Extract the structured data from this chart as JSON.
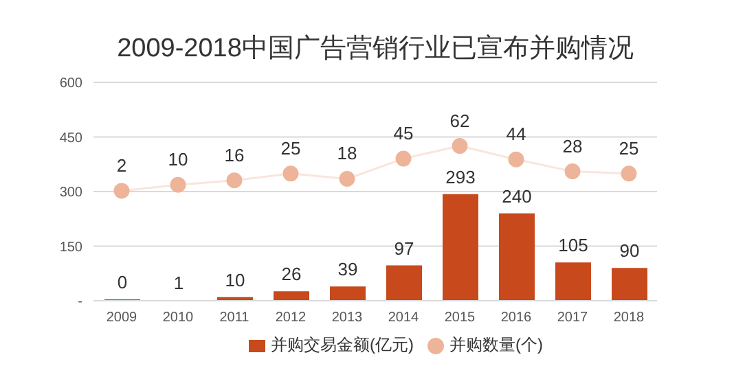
{
  "chart_data": {
    "type": "bar",
    "title": "2009-2018中国广告营销行业已宣布并购情况",
    "categories": [
      "2009",
      "2010",
      "2011",
      "2012",
      "2013",
      "2014",
      "2015",
      "2016",
      "2017",
      "2018"
    ],
    "series": [
      {
        "name": "并购交易金额(亿元)",
        "color": "#c8491c",
        "values": [
          0,
          1,
          10,
          26,
          39,
          97,
          293,
          240,
          105,
          90
        ]
      },
      {
        "name": "并购数量(个)",
        "type": "line",
        "axis": "y2",
        "color": "#eeb49a",
        "marker": "circle",
        "values": [
          2,
          10,
          16,
          25,
          18,
          45,
          62,
          44,
          28,
          25
        ]
      }
    ],
    "ylim": [
      0,
      600
    ],
    "yticks": [
      {
        "value": 0,
        "label": "-"
      },
      150,
      300,
      450,
      600
    ],
    "y2lim": [
      -145,
      147
    ],
    "grid": "y",
    "legend": "bottom",
    "data_labels": true
  }
}
